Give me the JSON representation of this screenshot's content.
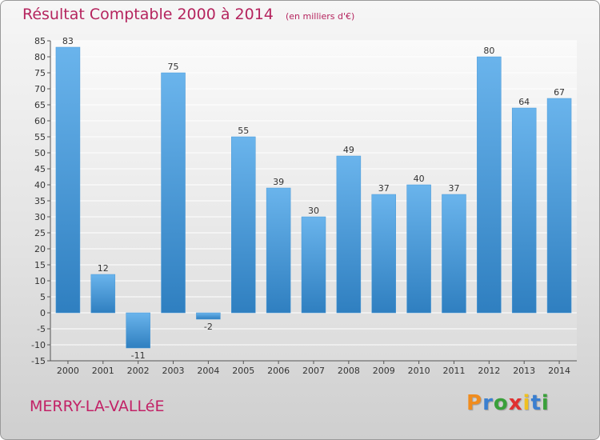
{
  "header": {
    "title": "Résultat Comptable 2000 à 2014",
    "subtitle": "(en milliers d'€)"
  },
  "footer": {
    "place": "MERRY-LA-VALLéE",
    "logo": {
      "letters": [
        "P",
        "r",
        "o",
        "x",
        "i",
        "t",
        "i"
      ],
      "colors": [
        "#f08c1e",
        "#3a7fd0",
        "#3aa03a",
        "#e03030",
        "#f0c020",
        "#3a7fd0",
        "#3aa03a"
      ]
    }
  },
  "colors": {
    "bar_light": "#6ab4ec",
    "bar_dark": "#2f7fc0",
    "accent": "#b5245e"
  },
  "chart_data": {
    "type": "bar",
    "title": "Résultat Comptable 2000 à 2014",
    "subtitle": "(en milliers d'€)",
    "categories": [
      "2000",
      "2001",
      "2002",
      "2003",
      "2004",
      "2005",
      "2006",
      "2007",
      "2008",
      "2009",
      "2010",
      "2011",
      "2012",
      "2013",
      "2014"
    ],
    "values": [
      83,
      12,
      -11,
      75,
      -2,
      55,
      39,
      30,
      49,
      37,
      40,
      37,
      80,
      64,
      67
    ],
    "ylim": [
      -15,
      85
    ],
    "yticks": [
      -15,
      -10,
      -5,
      0,
      5,
      10,
      15,
      20,
      25,
      30,
      35,
      40,
      45,
      50,
      55,
      60,
      65,
      70,
      75,
      80,
      85
    ],
    "grid": true
  }
}
